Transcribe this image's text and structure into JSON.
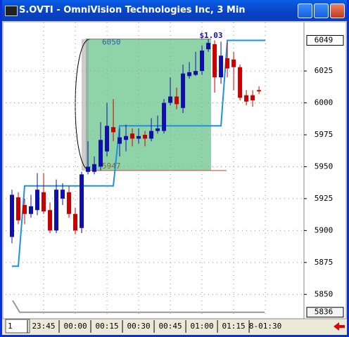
{
  "window_title": "S.OVTI - OmniVision Technologies Inc, 3 Min",
  "interval_input": "1",
  "chart_data": {
    "type": "candlestick",
    "open": [
      5895,
      5926,
      5920,
      5913,
      5916,
      5930,
      5916,
      5900,
      5925,
      5930,
      5913,
      5902,
      5946,
      5946,
      5950,
      5962,
      5981,
      5968,
      5971,
      5976,
      5972,
      5975,
      5972,
      5978,
      5978,
      6000,
      6005,
      5996,
      6021,
      6022,
      6025,
      6042,
      6046,
      6020,
      6035,
      6034,
      6028,
      6006,
      6006,
      6010,
      null
    ],
    "high": [
      5932,
      5930,
      5925,
      5928,
      5945,
      5945,
      5922,
      5940,
      5937,
      5935,
      5918,
      5946,
      5970,
      5958,
      5985,
      6000,
      6003,
      5980,
      5983,
      5980,
      5980,
      5978,
      5988,
      5990,
      6003,
      6020,
      6012,
      6030,
      6032,
      6040,
      6045,
      6050,
      6049,
      6048,
      6047,
      6040,
      6030,
      6010,
      6010,
      6013,
      null
    ],
    "low": [
      5890,
      5905,
      5905,
      5910,
      5912,
      5913,
      5898,
      5898,
      5920,
      5910,
      5897,
      5898,
      5944,
      5944,
      5947,
      5958,
      5970,
      5958,
      5962,
      5966,
      5968,
      5966,
      5970,
      5976,
      5976,
      5998,
      5995,
      5992,
      6019,
      6021,
      6022,
      6040,
      6008,
      6015,
      6020,
      6010,
      6002,
      5998,
      5997,
      6007,
      null
    ],
    "close": [
      5928,
      5908,
      5913,
      5919,
      5932,
      5915,
      5900,
      5932,
      5932,
      5913,
      5900,
      5944,
      5950,
      5952,
      5971,
      5982,
      5977,
      5973,
      5974,
      5972,
      5974,
      5972,
      5978,
      5980,
      6000,
      6005,
      5999,
      6023,
      6024,
      6025,
      6041,
      6047,
      6020,
      6037,
      6027,
      6028,
      6004,
      6001,
      6002,
      6009,
      null
    ],
    "up_color": "#1010a8",
    "down_color": "#c80000",
    "line": {
      "color": "#1e90e0",
      "values": [
        5872,
        5872,
        5935,
        5935,
        5935,
        5935,
        5935,
        5935,
        5935,
        5935,
        5935,
        5935,
        5935,
        5935,
        5935,
        5935,
        5935,
        5982,
        5982,
        5982,
        5982,
        5982,
        5982,
        5982,
        5982,
        5982,
        5982,
        5982,
        5982,
        5982,
        5982,
        5982,
        5982,
        5982,
        6049,
        6049,
        6049,
        6049,
        6049,
        6049,
        6049
      ]
    },
    "range": {
      "high": 6050,
      "low": 5947,
      "gain_label": "$1.03",
      "color": "#8fd4a8"
    },
    "price_markers": [
      6049,
      5836
    ],
    "xlim": [
      -1,
      46.1
    ],
    "xticks": [
      {
        "value": 5,
        "label": "23:45"
      },
      {
        "value": 10,
        "label": "00:00"
      },
      {
        "value": 15,
        "label": "00:15"
      },
      {
        "value": 20,
        "label": "00:30"
      },
      {
        "value": 25,
        "label": "00:45"
      },
      {
        "value": 30,
        "label": "01:00"
      },
      {
        "value": 35,
        "label": "01:15"
      },
      {
        "value": 40,
        "label": "8-01:30"
      }
    ],
    "ylim": [
      5832,
      6063
    ],
    "yticks": [
      5850,
      5875,
      5900,
      5925,
      5950,
      5975,
      6000,
      6025
    ],
    "grid": true
  }
}
